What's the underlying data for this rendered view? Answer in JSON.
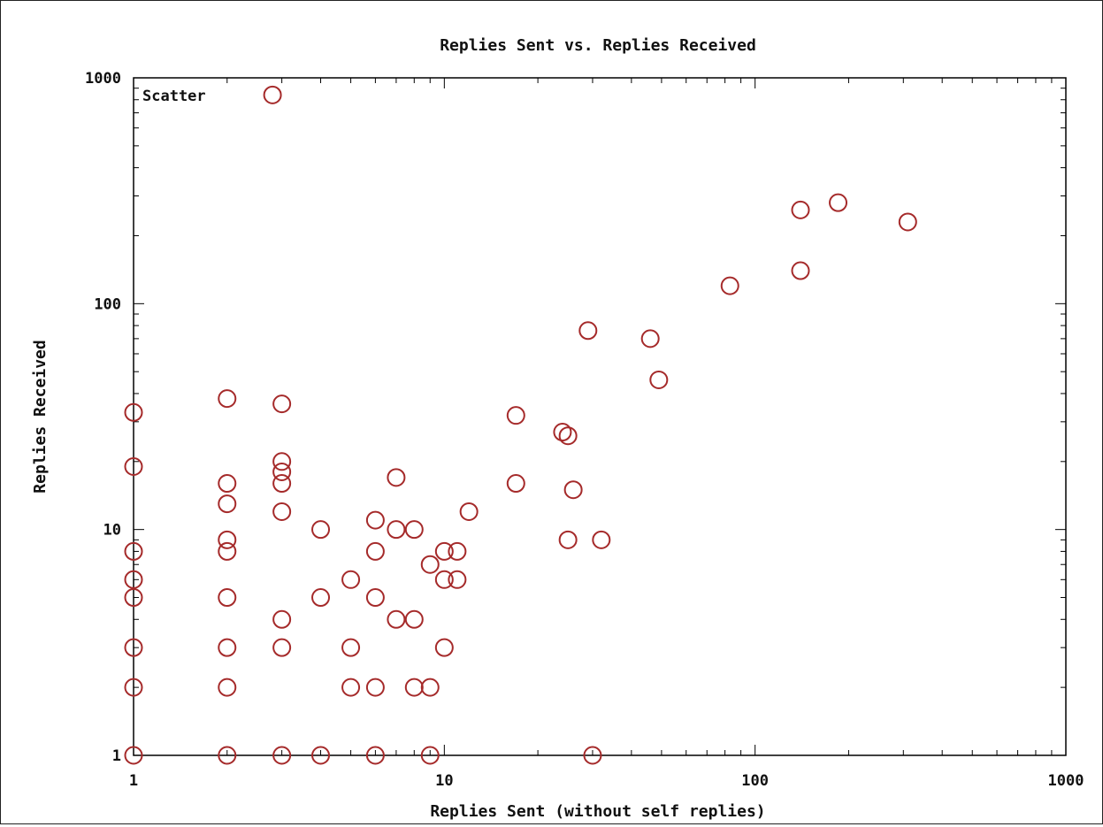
{
  "chart_data": {
    "type": "scatter",
    "title": "Replies Sent vs. Replies Received",
    "xlabel": "Replies Sent (without self replies)",
    "ylabel": "Replies Received",
    "x_scale": "log",
    "y_scale": "log",
    "xlim": [
      1,
      1000
    ],
    "ylim": [
      1,
      1000
    ],
    "x_ticks": [
      {
        "value": 1,
        "label": "1"
      },
      {
        "value": 10,
        "label": "10"
      },
      {
        "value": 100,
        "label": "100"
      },
      {
        "value": 1000,
        "label": "1000"
      }
    ],
    "y_ticks": [
      {
        "value": 1,
        "label": "1"
      },
      {
        "value": 10,
        "label": "10"
      },
      {
        "value": 100,
        "label": "100"
      },
      {
        "value": 1000,
        "label": "1000"
      }
    ],
    "grid": false,
    "legend": {
      "placement": "top-left",
      "entries": [
        "Scatter"
      ]
    },
    "marker_color": "#a52a2a",
    "series": [
      {
        "name": "Scatter",
        "points": [
          [
            1,
            1
          ],
          [
            1,
            2
          ],
          [
            1,
            3
          ],
          [
            1,
            5
          ],
          [
            1,
            6
          ],
          [
            1,
            8
          ],
          [
            1,
            19
          ],
          [
            1,
            33
          ],
          [
            2,
            1
          ],
          [
            2,
            2
          ],
          [
            2,
            3
          ],
          [
            2,
            5
          ],
          [
            2,
            8
          ],
          [
            2,
            9
          ],
          [
            2,
            13
          ],
          [
            2,
            16
          ],
          [
            2,
            38
          ],
          [
            3,
            1
          ],
          [
            3,
            3
          ],
          [
            3,
            4
          ],
          [
            3,
            12
          ],
          [
            3,
            16
          ],
          [
            3,
            18
          ],
          [
            3,
            20
          ],
          [
            3,
            36
          ],
          [
            2.8,
            840
          ],
          [
            4,
            1
          ],
          [
            4,
            5
          ],
          [
            4,
            10
          ],
          [
            5,
            2
          ],
          [
            5,
            3
          ],
          [
            5,
            6
          ],
          [
            6,
            1
          ],
          [
            6,
            2
          ],
          [
            6,
            5
          ],
          [
            6,
            8
          ],
          [
            6,
            11
          ],
          [
            7,
            4
          ],
          [
            7,
            10
          ],
          [
            7,
            17
          ],
          [
            8,
            2
          ],
          [
            8,
            4
          ],
          [
            8,
            10
          ],
          [
            9,
            1
          ],
          [
            9,
            2
          ],
          [
            9,
            7
          ],
          [
            10,
            3
          ],
          [
            10,
            6
          ],
          [
            10,
            8
          ],
          [
            11,
            6
          ],
          [
            11,
            8
          ],
          [
            12,
            12
          ],
          [
            17,
            16
          ],
          [
            17,
            32
          ],
          [
            24,
            27
          ],
          [
            25,
            9
          ],
          [
            25,
            26
          ],
          [
            26,
            15
          ],
          [
            29,
            76
          ],
          [
            30,
            1
          ],
          [
            32,
            9
          ],
          [
            46,
            70
          ],
          [
            49,
            46
          ],
          [
            83,
            120
          ],
          [
            140,
            140
          ],
          [
            140,
            260
          ],
          [
            185,
            280
          ],
          [
            310,
            230
          ]
        ]
      }
    ]
  }
}
